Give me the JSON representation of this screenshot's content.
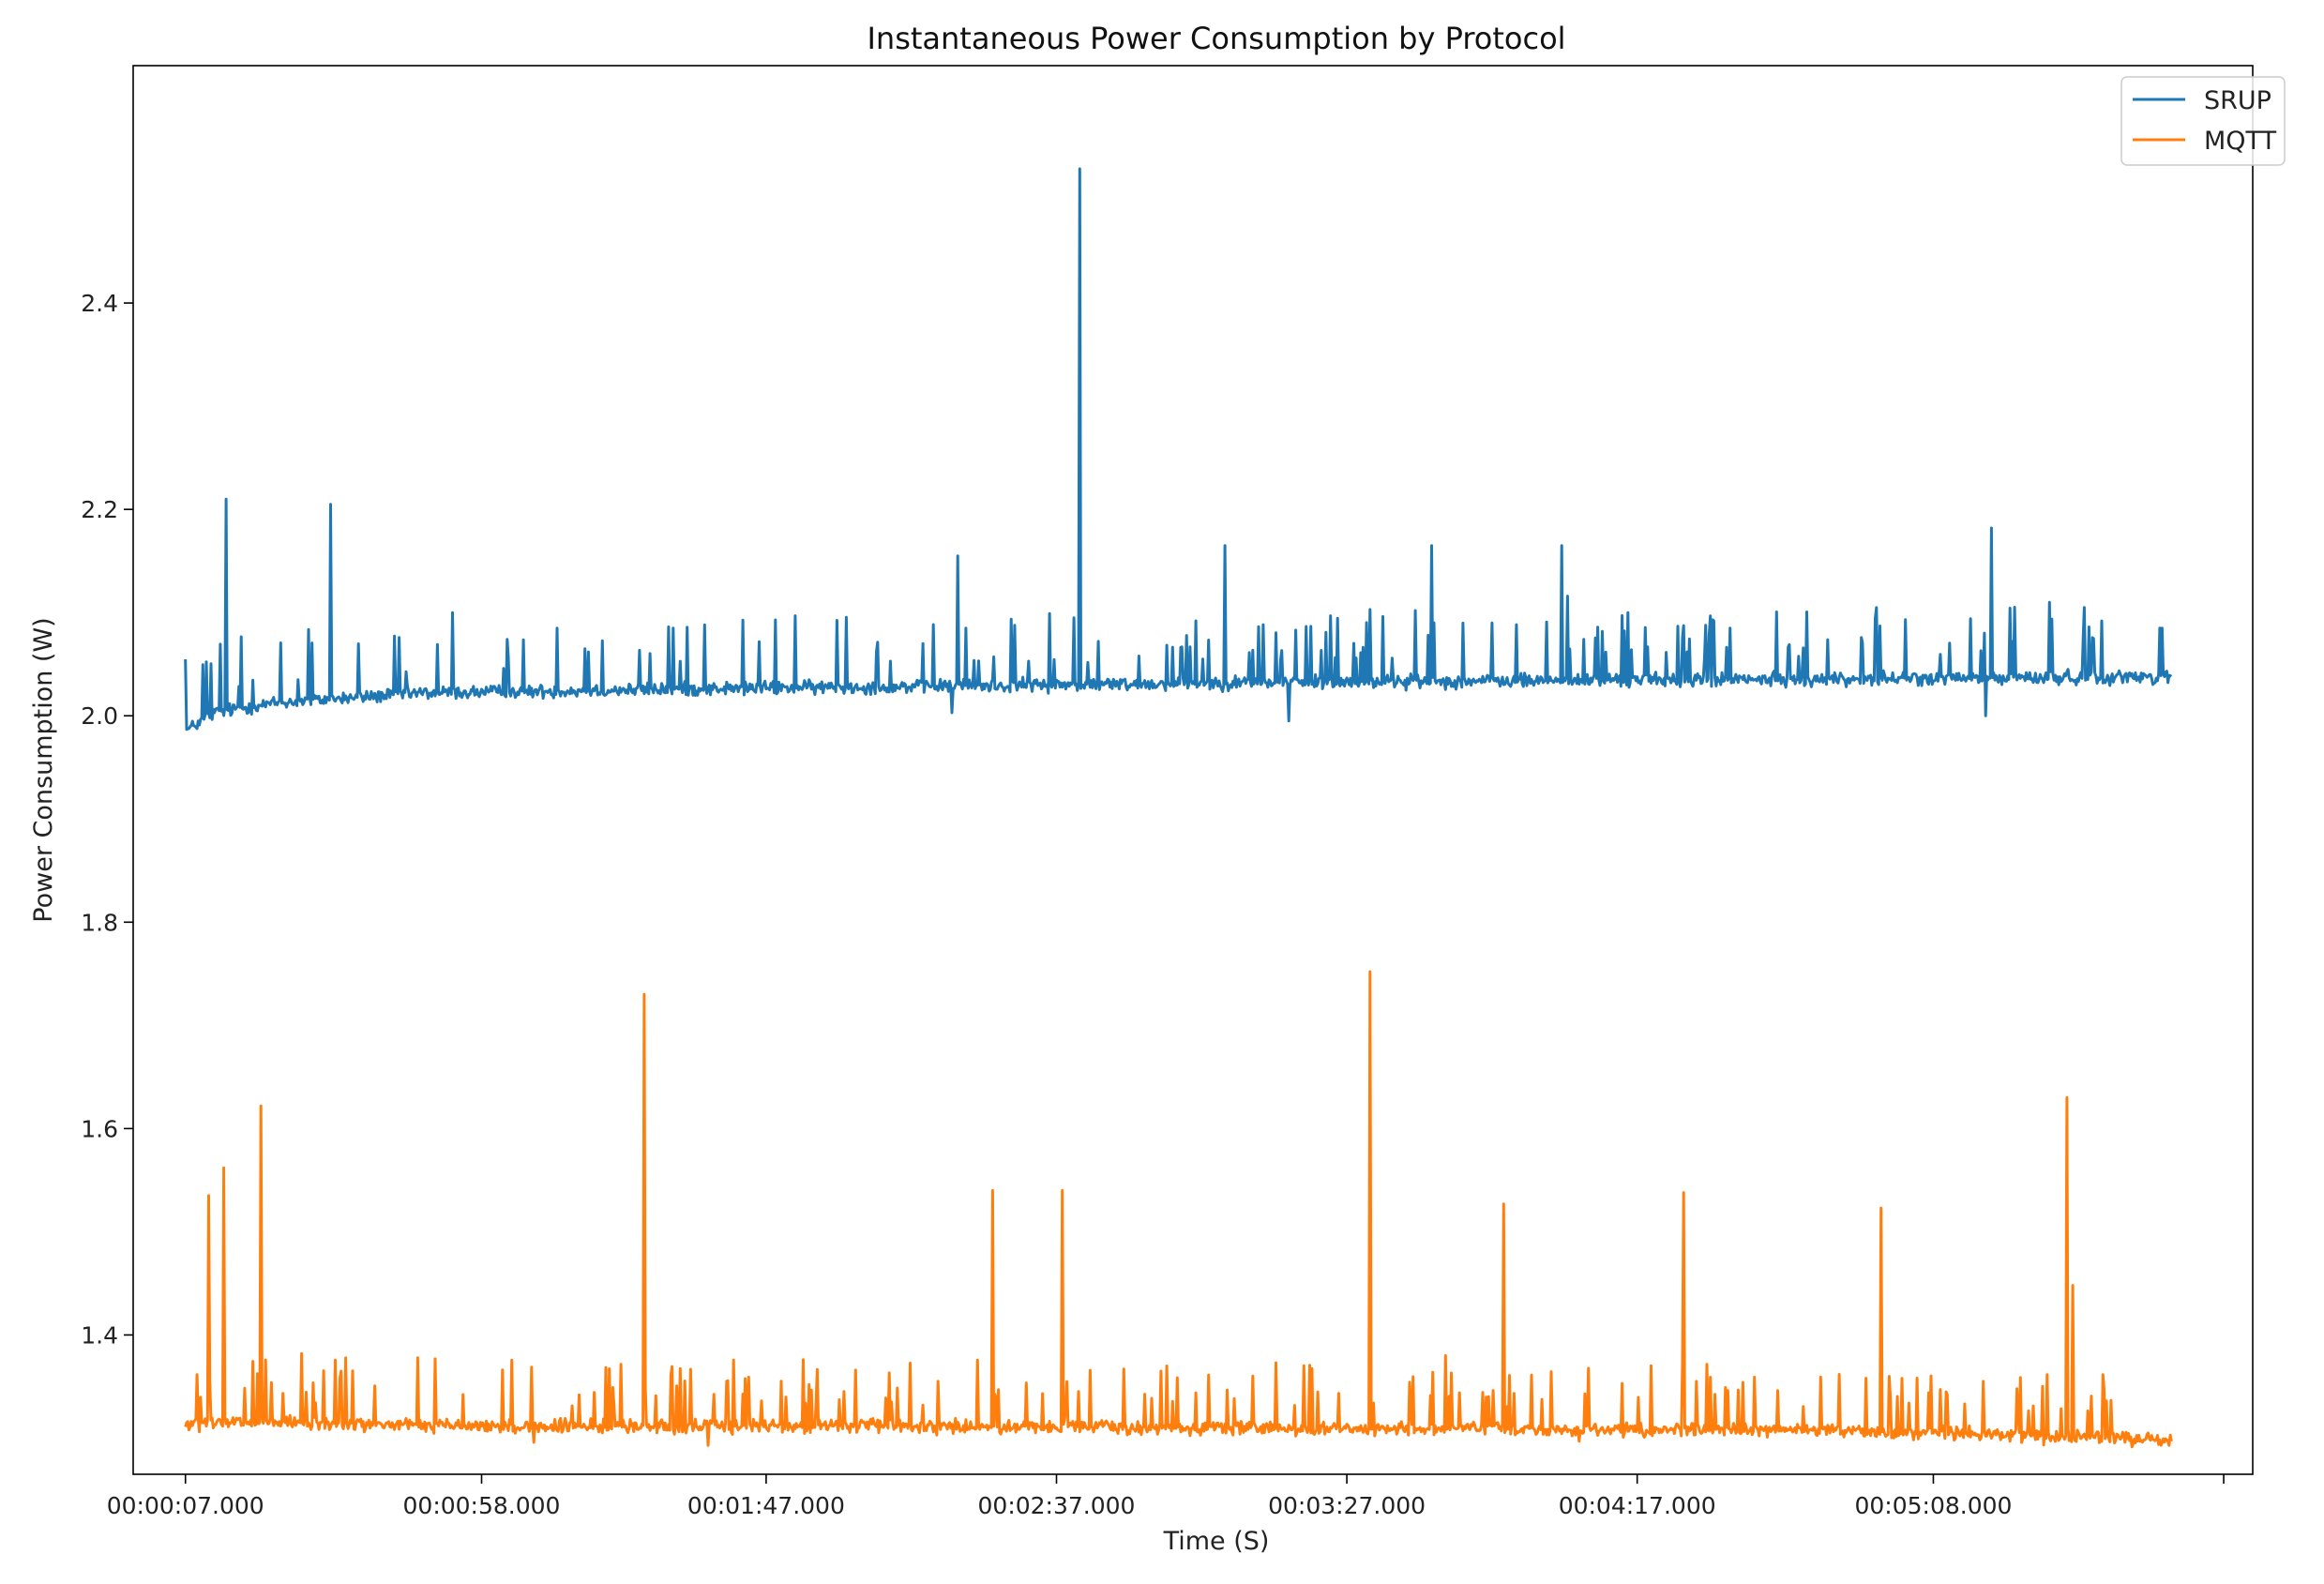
{
  "chart_data": {
    "type": "line",
    "title": "Instantaneous Power Consumption by Protocol",
    "xlabel": "Time (S)",
    "ylabel": "Power Consumption (W)",
    "xlim": [
      -9,
      356
    ],
    "ylim": [
      1.265,
      2.63
    ],
    "x_ticks": [
      {
        "value": 0,
        "label": "00:00:07.000"
      },
      {
        "value": 51,
        "label": "00:00:58.000"
      },
      {
        "value": 100,
        "label": "00:01:47.000"
      },
      {
        "value": 150,
        "label": "00:02:37.000"
      },
      {
        "value": 200,
        "label": "00:03:27.000"
      },
      {
        "value": 250,
        "label": "00:04:17.000"
      },
      {
        "value": 301,
        "label": "00:05:08.000"
      },
      {
        "value": 351,
        "label": ""
      }
    ],
    "y_ticks": [
      1.4,
      1.6,
      1.8,
      2.0,
      2.2,
      2.4
    ],
    "y_tick_labels": [
      "1.4",
      "1.6",
      "1.8",
      "2.0",
      "2.2",
      "2.4"
    ],
    "legend_position": "top-right",
    "series": [
      {
        "name": "SRUP",
        "color": "#1f77b4",
        "base": [
          [
            0,
            1.985
          ],
          [
            5,
            2.003
          ],
          [
            15,
            2.012
          ],
          [
            40,
            2.022
          ],
          [
            100,
            2.027
          ],
          [
            200,
            2.033
          ],
          [
            300,
            2.036
          ],
          [
            342,
            2.038
          ]
        ],
        "noise": 0.006,
        "small_spike_count": 150,
        "small_spike_range": [
          0.02,
          0.07
        ],
        "dips": [
          [
            132,
            2.003
          ],
          [
            190,
            1.995
          ],
          [
            238,
            2.003
          ],
          [
            310,
            2.0
          ]
        ],
        "spikes": [
          [
            7,
            2.21
          ],
          [
            25,
            2.205
          ],
          [
            46,
            2.1
          ],
          [
            64,
            2.085
          ],
          [
            84,
            2.085
          ],
          [
            127,
            2.07
          ],
          [
            133,
            2.155
          ],
          [
            153,
            2.095
          ],
          [
            154,
            2.53
          ],
          [
            174,
            2.092
          ],
          [
            179,
            2.165
          ],
          [
            204,
            2.103
          ],
          [
            214,
            2.078
          ],
          [
            214.5,
            2.165
          ],
          [
            225,
            2.09
          ],
          [
            237,
            2.165
          ],
          [
            238,
            2.116
          ],
          [
            266,
            2.085
          ],
          [
            311,
            2.182
          ],
          [
            321,
            2.11
          ],
          [
            327,
            2.105
          ],
          [
            340,
            2.085
          ]
        ]
      },
      {
        "name": "MQTT",
        "color": "#ff7f0e",
        "base": [
          [
            0,
            1.313
          ],
          [
            10,
            1.315
          ],
          [
            60,
            1.311
          ],
          [
            120,
            1.312
          ],
          [
            200,
            1.309
          ],
          [
            280,
            1.308
          ],
          [
            340,
            1.299
          ],
          [
            342,
            1.298
          ]
        ],
        "noise": 0.006,
        "small_spike_count": 170,
        "small_spike_range": [
          0.02,
          0.065
        ],
        "dips": [
          [
            40,
            1.296
          ],
          [
            60,
            1.296
          ],
          [
            90,
            1.293
          ],
          [
            240,
            1.297
          ],
          [
            311,
            1.3
          ]
        ],
        "spikes": [
          [
            4,
            1.535
          ],
          [
            6.5,
            1.562
          ],
          [
            13,
            1.622
          ],
          [
            20,
            1.382
          ],
          [
            40,
            1.378
          ],
          [
            79,
            1.73
          ],
          [
            139,
            1.54
          ],
          [
            151,
            1.54
          ],
          [
            169,
            1.37
          ],
          [
            204,
            1.752
          ],
          [
            217,
            1.38
          ],
          [
            227,
            1.527
          ],
          [
            258,
            1.538
          ],
          [
            292,
            1.523
          ],
          [
            324,
            1.63
          ],
          [
            325,
            1.448
          ]
        ]
      }
    ]
  }
}
